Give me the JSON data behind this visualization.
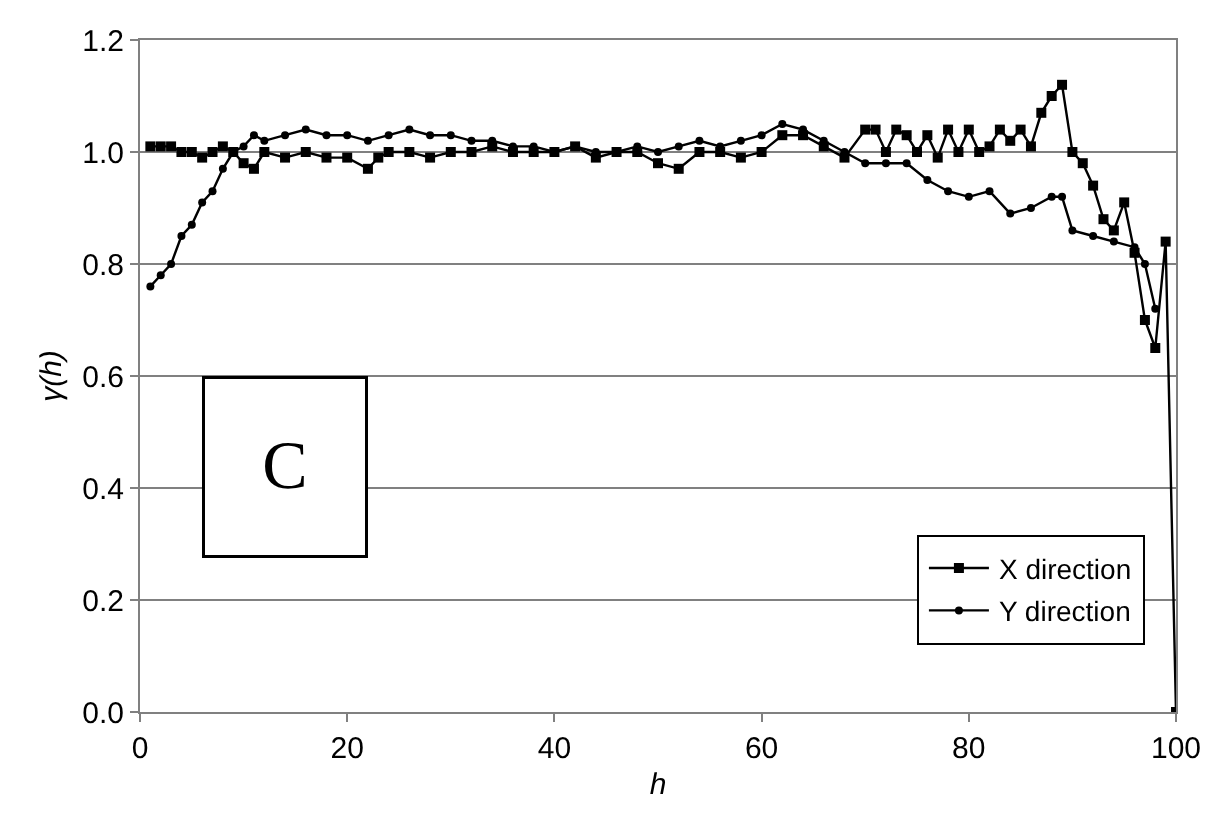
{
  "chart_data": {
    "type": "line",
    "xlabel": "h",
    "ylabel": "γ(h)",
    "xlim": [
      0,
      100
    ],
    "xticks": [
      0,
      20,
      40,
      60,
      80,
      100
    ],
    "ylim": [
      0,
      1.2
    ],
    "yticks": [
      {
        "value": 0,
        "label": "0.0"
      },
      0.2,
      0.4,
      0.6,
      0.8,
      {
        "value": 1,
        "label": "1.0"
      },
      1.2
    ],
    "grid": "y",
    "legend": "bottom right",
    "annotations": [
      "C"
    ],
    "series": [
      {
        "name": "X direction",
        "color": "#000000",
        "marker": "square",
        "x": [
          1,
          2,
          3,
          4,
          5,
          6,
          7,
          8,
          9,
          10,
          11,
          12,
          14,
          16,
          18,
          20,
          22,
          23,
          24,
          26,
          28,
          30,
          32,
          34,
          36,
          38,
          40,
          42,
          44,
          46,
          48,
          50,
          52,
          54,
          56,
          58,
          60,
          62,
          64,
          66,
          68,
          70,
          71,
          72,
          73,
          74,
          75,
          76,
          77,
          78,
          79,
          80,
          81,
          82,
          83,
          84,
          85,
          86,
          87,
          88,
          89,
          90,
          91,
          92,
          93,
          94,
          95,
          96,
          97,
          98,
          99,
          100
        ],
        "values": [
          1.01,
          1.01,
          1.01,
          1.0,
          1.0,
          0.99,
          1.0,
          1.01,
          1.0,
          0.98,
          0.97,
          1.0,
          0.99,
          1.0,
          0.99,
          0.99,
          0.97,
          0.99,
          1.0,
          1.0,
          0.99,
          1.0,
          1.0,
          1.01,
          1.0,
          1.0,
          1.0,
          1.01,
          0.99,
          1.0,
          1.0,
          0.98,
          0.97,
          1.0,
          1.0,
          0.99,
          1.0,
          1.03,
          1.03,
          1.01,
          0.99,
          1.04,
          1.04,
          1.0,
          1.04,
          1.03,
          1.0,
          1.03,
          0.99,
          1.04,
          1.0,
          1.04,
          1.0,
          1.01,
          1.04,
          1.02,
          1.04,
          1.01,
          1.07,
          1.1,
          1.12,
          1.0,
          0.98,
          0.94,
          0.88,
          0.86,
          0.91,
          0.82,
          0.7,
          0.65,
          0.84,
          0.0
        ]
      },
      {
        "name": "Y direction",
        "color": "#000000",
        "marker": "circle",
        "x": [
          1,
          2,
          3,
          4,
          5,
          6,
          7,
          8,
          9,
          10,
          11,
          12,
          14,
          16,
          18,
          20,
          22,
          24,
          26,
          28,
          30,
          32,
          34,
          36,
          38,
          40,
          42,
          44,
          46,
          48,
          50,
          52,
          54,
          56,
          58,
          60,
          62,
          64,
          66,
          68,
          70,
          72,
          74,
          76,
          78,
          80,
          82,
          84,
          86,
          88,
          89,
          90,
          92,
          94,
          96,
          97,
          98
        ],
        "values": [
          0.76,
          0.78,
          0.8,
          0.85,
          0.87,
          0.91,
          0.93,
          0.97,
          1.0,
          1.01,
          1.03,
          1.02,
          1.03,
          1.04,
          1.03,
          1.03,
          1.02,
          1.03,
          1.04,
          1.03,
          1.03,
          1.02,
          1.02,
          1.01,
          1.01,
          1.0,
          1.01,
          1.0,
          1.0,
          1.01,
          1.0,
          1.01,
          1.02,
          1.01,
          1.02,
          1.03,
          1.05,
          1.04,
          1.02,
          1.0,
          0.98,
          0.98,
          0.98,
          0.95,
          0.93,
          0.92,
          0.93,
          0.89,
          0.9,
          0.92,
          0.92,
          0.86,
          0.85,
          0.84,
          0.83,
          0.8,
          0.72
        ]
      }
    ]
  }
}
